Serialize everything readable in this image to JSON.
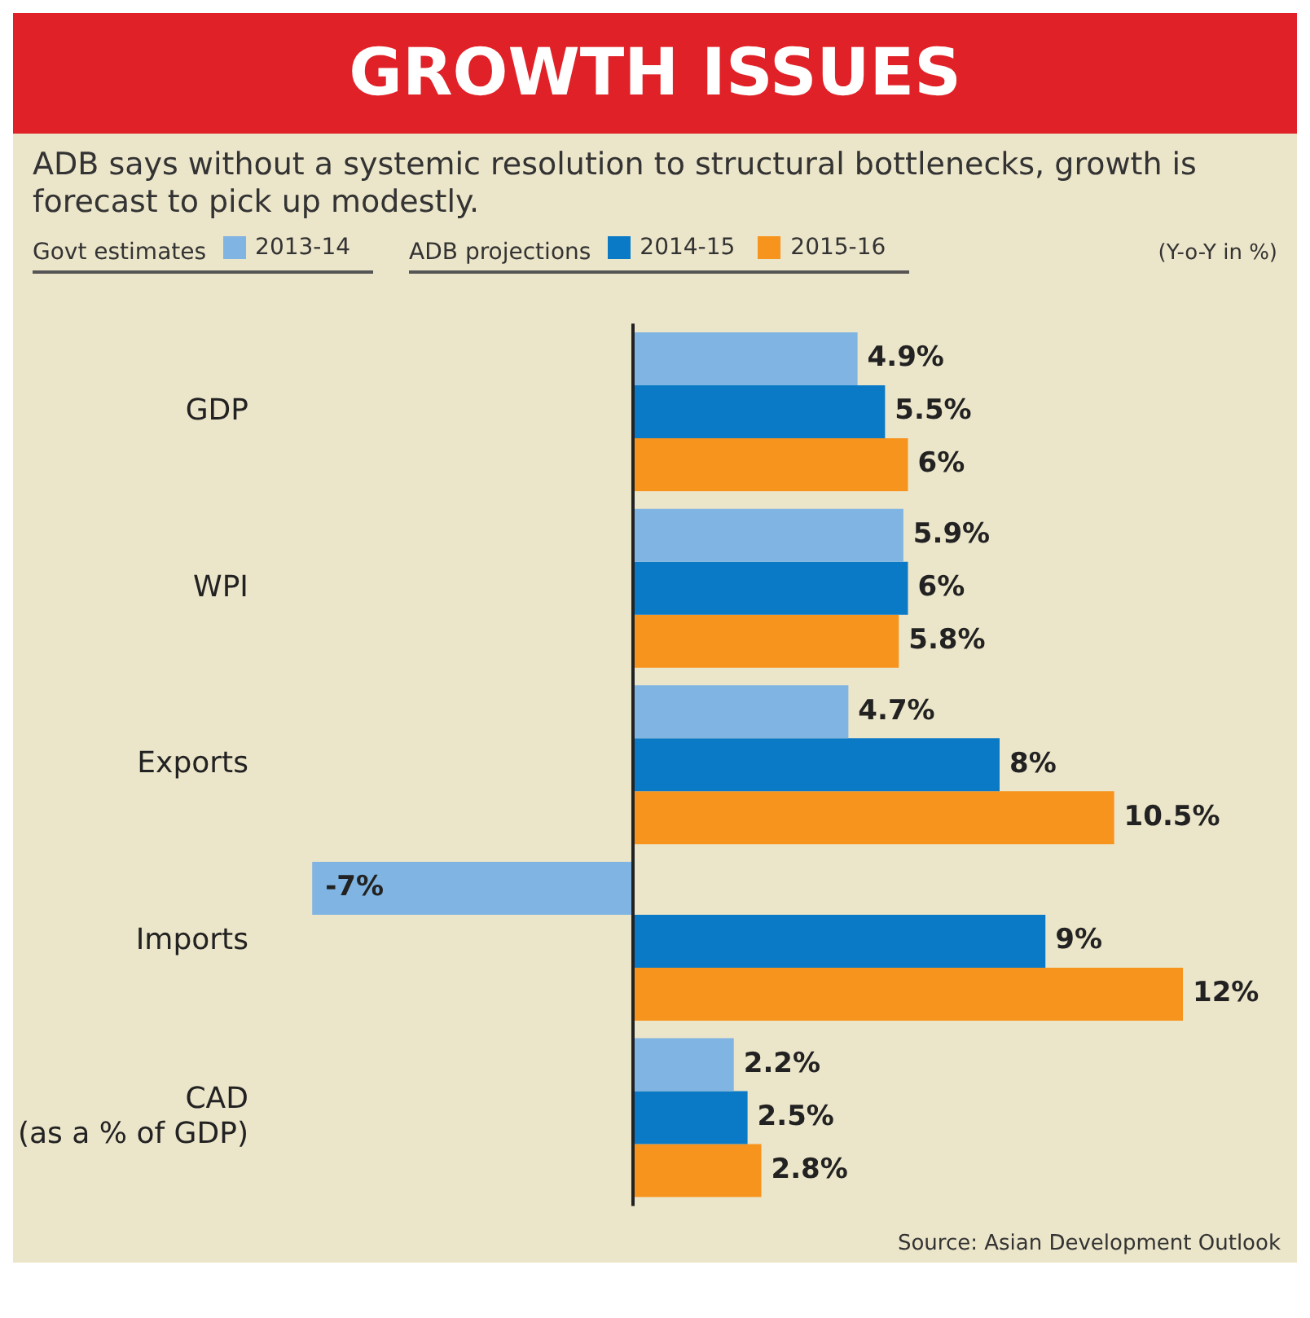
{
  "chart_data": {
    "type": "bar",
    "orientation": "horizontal",
    "title": "GROWTH ISSUES",
    "subtitle": "ADB says without a systemic resolution to structural bottlenecks, growth is forecast to pick up modestly.",
    "categories": [
      "GDP",
      "WPI",
      "Exports",
      "Imports",
      "CAD\n(as a % of GDP)"
    ],
    "series": [
      {
        "name": "2013-14",
        "color": "#7fb4e3",
        "values": [
          4.9,
          5.9,
          4.7,
          -7,
          2.2
        ],
        "value_labels": [
          "4.9%",
          "5.9%",
          "4.7%",
          "-7%",
          "2.2%"
        ]
      },
      {
        "name": "2014-15",
        "color": "#0b7ac6",
        "values": [
          5.5,
          6,
          8,
          9,
          2.5
        ],
        "value_labels": [
          "5.5%",
          "6%",
          "8%",
          "9%",
          "2.5%"
        ]
      },
      {
        "name": "2015-16",
        "color": "#f7941d",
        "values": [
          6,
          5.8,
          10.5,
          12,
          2.8
        ],
        "value_labels": [
          "6%",
          "5.8%",
          "10.5%",
          "12%",
          "2.8%"
        ]
      }
    ],
    "annotations": [
      "Govt estimates",
      "ADB projections",
      "(Y-o-Y in %)",
      "Source: Asian Development Outlook"
    ],
    "legend": "top",
    "grid": false
  }
}
